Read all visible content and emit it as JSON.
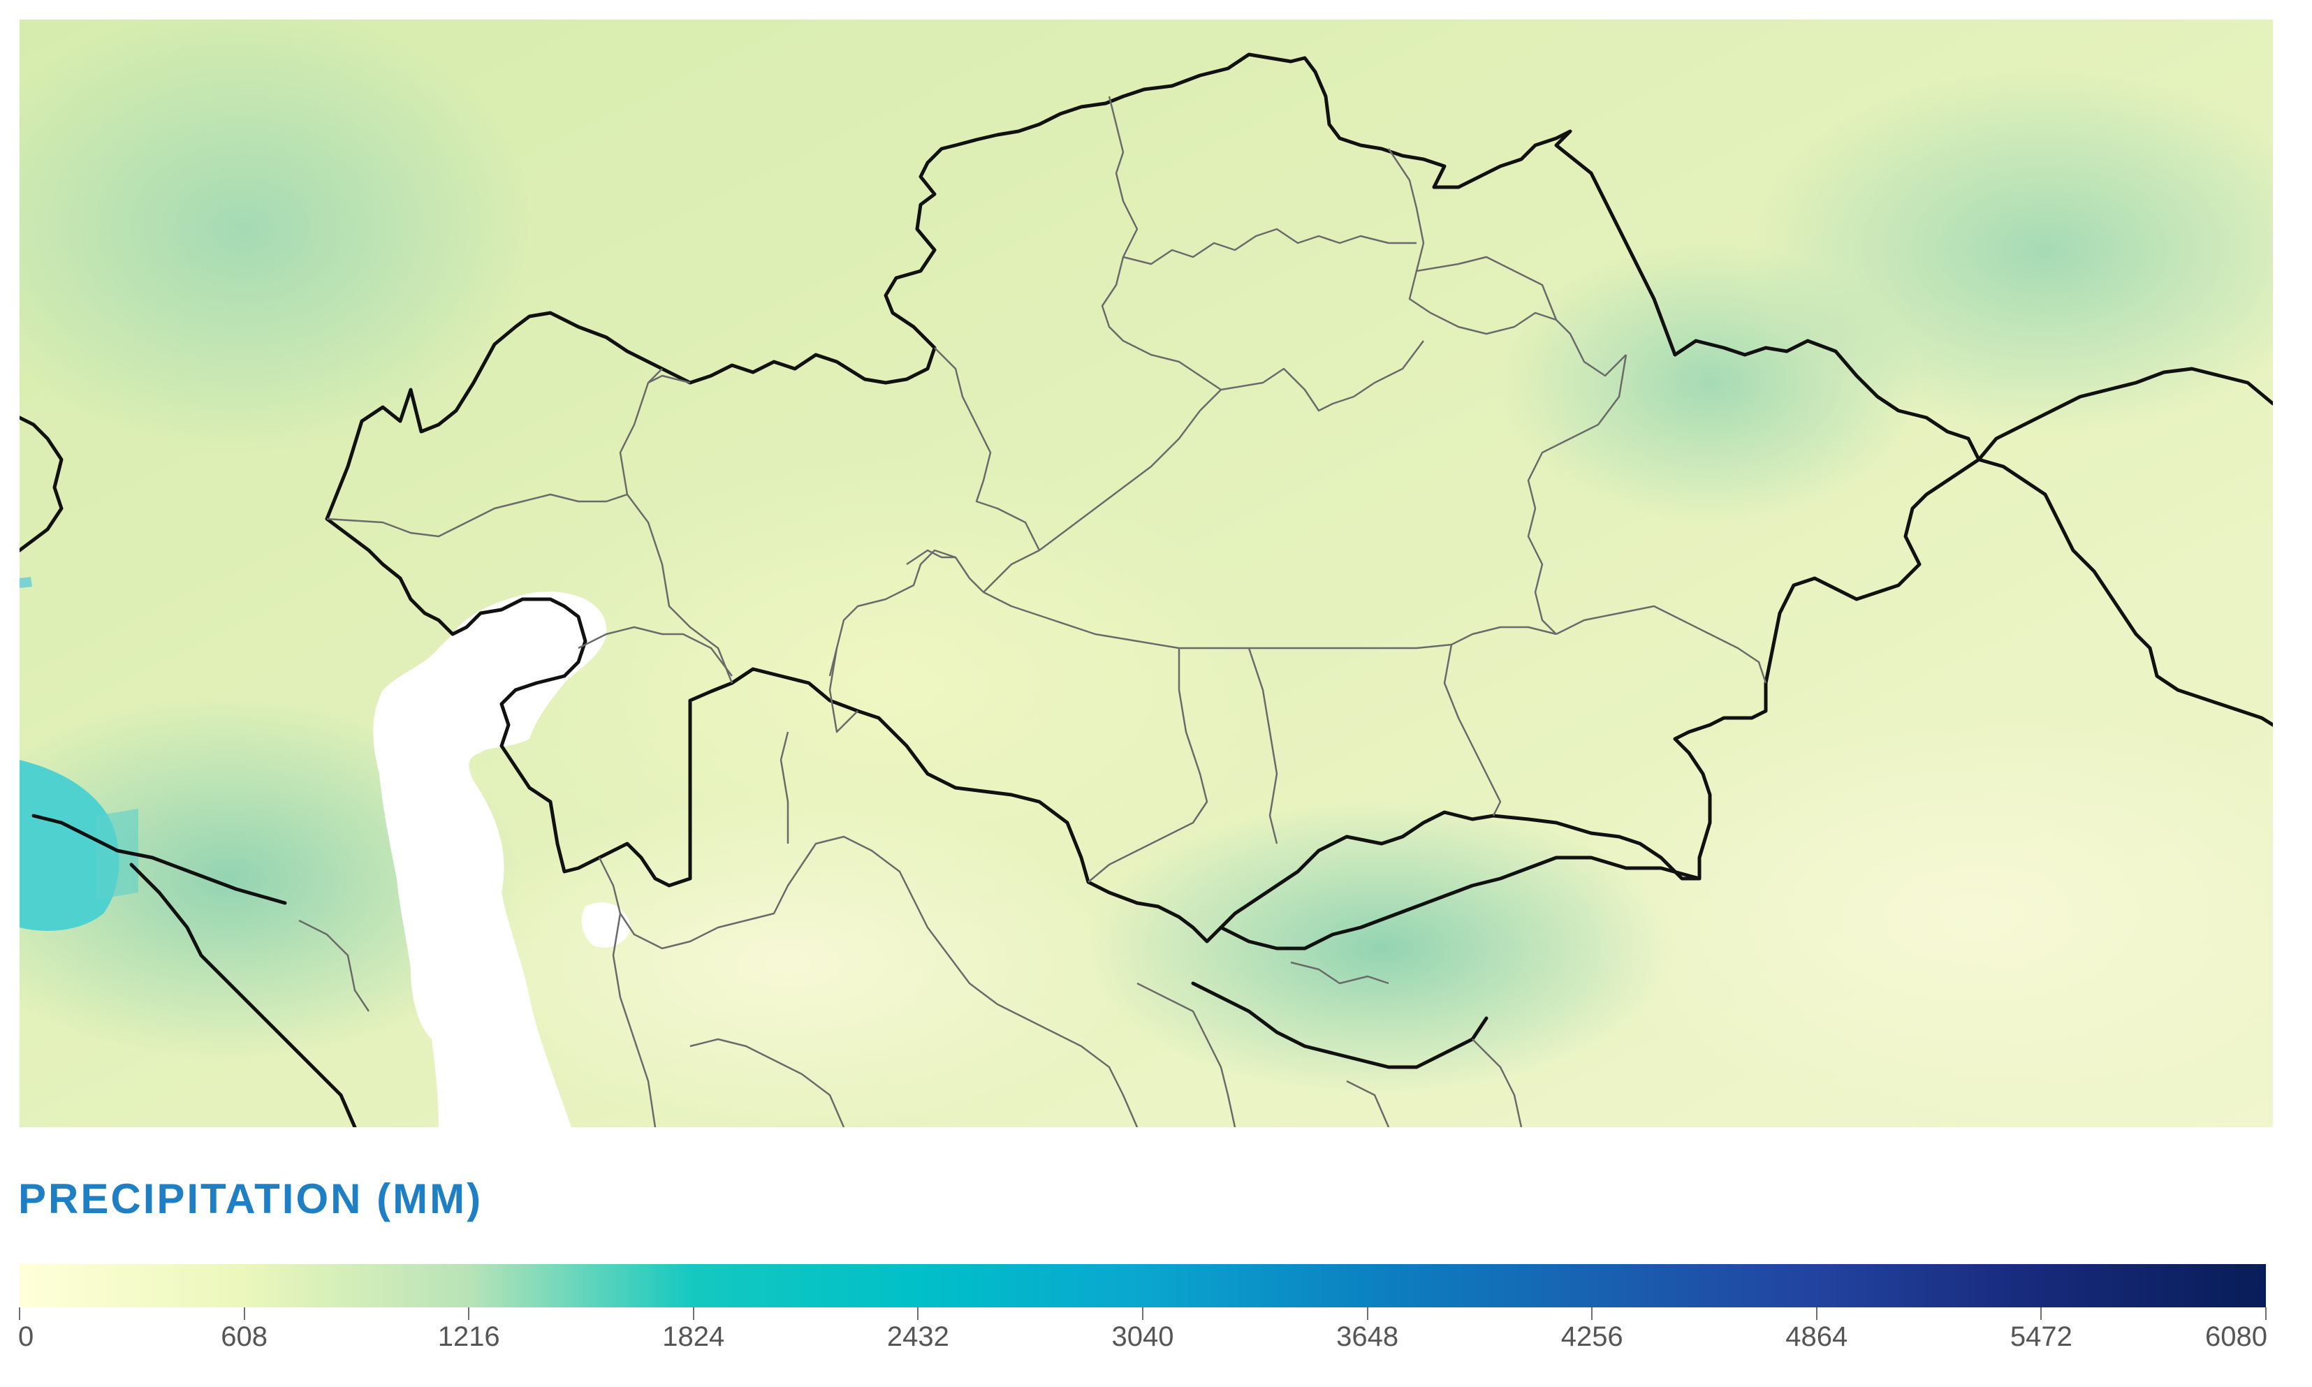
{
  "map": {
    "layer": "precipitation",
    "basemap": "shaded-relief",
    "features": [
      "country-borders",
      "province-borders",
      "water-bodies"
    ],
    "colors": {
      "land_low": "#f4f8c8",
      "land_mid": "#dcefb4",
      "land_high": "#a9d9b0",
      "water": "#ffffff",
      "sea_wet": "#4fd1cf",
      "national_border": "#111111",
      "region_border": "#666666"
    }
  },
  "legend": {
    "title": "PRECIPITATION (MM)",
    "title_color": "#1f7fc4",
    "min": 0,
    "max": 6080,
    "ticks": [
      "0",
      "608",
      "1216",
      "1824",
      "2432",
      "3040",
      "3648",
      "4256",
      "4864",
      "5472",
      "6080"
    ],
    "gradient": [
      {
        "value": 0,
        "color": "#ffffd9"
      },
      {
        "value": 608,
        "color": "#ebf7bb"
      },
      {
        "value": 1216,
        "color": "#b8e3b7"
      },
      {
        "value": 1824,
        "color": "#14c8c0"
      },
      {
        "value": 2432,
        "color": "#00c0c8"
      },
      {
        "value": 3040,
        "color": "#0aa6cf"
      },
      {
        "value": 3648,
        "color": "#0b82c1"
      },
      {
        "value": 4256,
        "color": "#1862b1"
      },
      {
        "value": 4864,
        "color": "#22439f"
      },
      {
        "value": 5472,
        "color": "#17297a"
      },
      {
        "value": 6080,
        "color": "#081d58"
      }
    ]
  }
}
